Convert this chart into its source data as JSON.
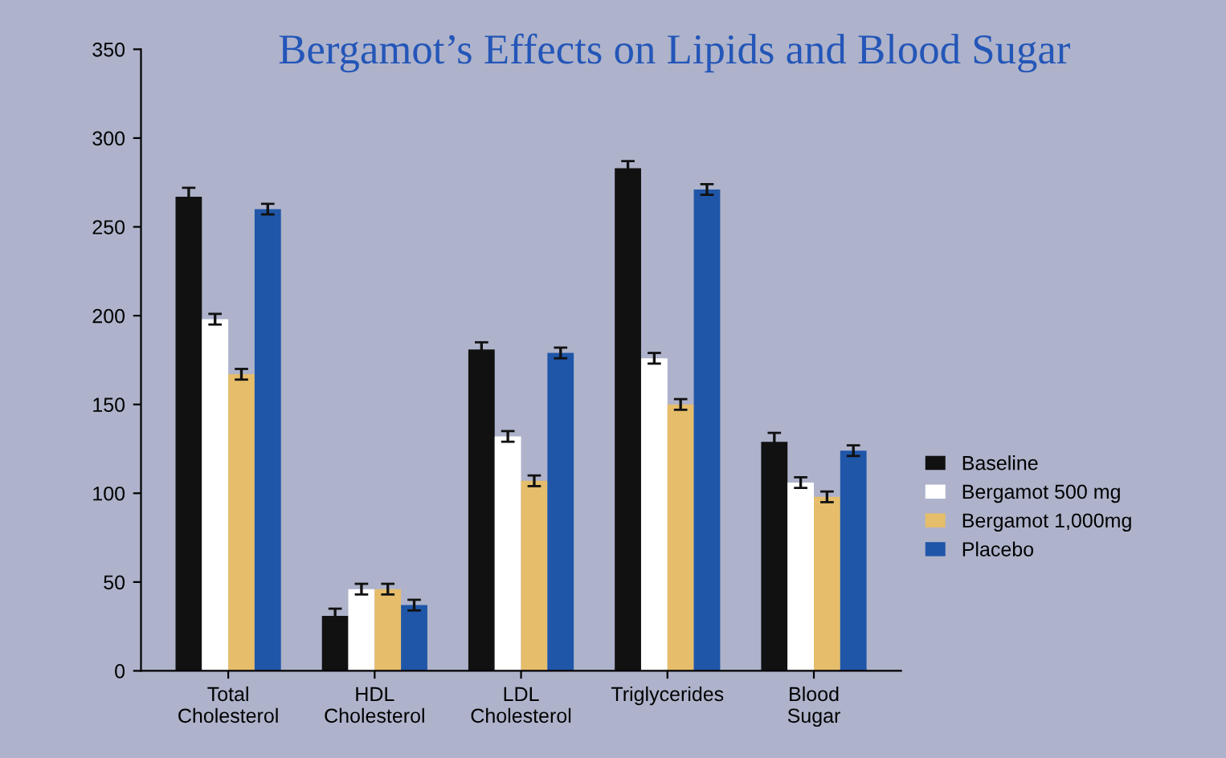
{
  "chart_data": {
    "type": "bar",
    "title": "Bergamot’s Effects on Lipids and Blood Sugar",
    "categories": [
      "Total\nCholesterol",
      "HDL\nCholesterol",
      "LDL\nCholesterol",
      "Triglycerides",
      "Blood\nSugar"
    ],
    "series": [
      {
        "name": "Baseline",
        "color": "#111111",
        "values": [
          267,
          31,
          181,
          283,
          129
        ],
        "errors": [
          5,
          4,
          4,
          4,
          5
        ]
      },
      {
        "name": "Bergamot 500 mg",
        "color": "#ffffff",
        "values": [
          198,
          46,
          132,
          176,
          106
        ],
        "errors": [
          3,
          3,
          3,
          3,
          3
        ]
      },
      {
        "name": "Bergamot 1,000mg",
        "color": "#e6bd6a",
        "values": [
          167,
          46,
          107,
          150,
          98
        ],
        "errors": [
          3,
          3,
          3,
          3,
          3
        ]
      },
      {
        "name": "Placebo",
        "color": "#1f56a8",
        "values": [
          260,
          37,
          179,
          271,
          124
        ],
        "errors": [
          3,
          3,
          3,
          3,
          3
        ]
      }
    ],
    "ylim": [
      0,
      350
    ],
    "yticks": [
      0,
      50,
      100,
      150,
      200,
      250,
      300,
      350
    ],
    "grid": false,
    "legend": "right"
  }
}
